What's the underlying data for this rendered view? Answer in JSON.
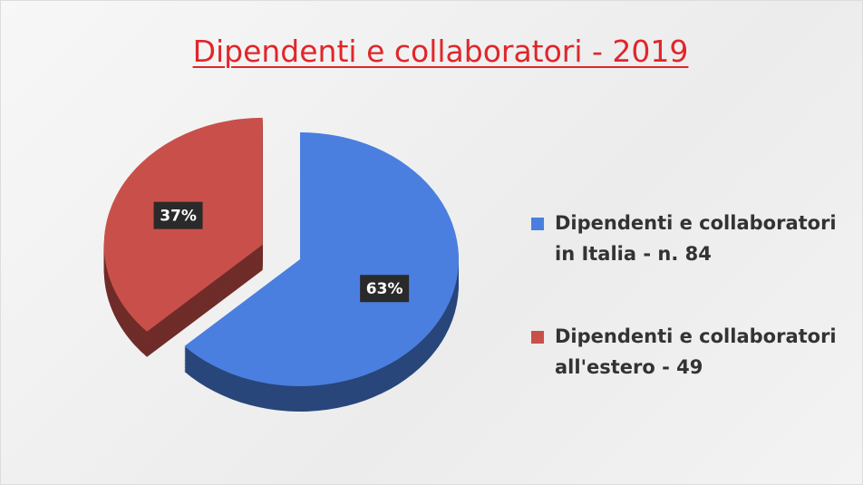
{
  "chart_data": {
    "type": "pie",
    "title": "Dipendenti e collaboratori - 2019",
    "categories": [
      "Dipendenti e collaboratori in Italia - n. 84",
      "Dipendenti e collaboratori all'estero - 49"
    ],
    "values": [
      63,
      37
    ],
    "value_labels": [
      "63%",
      "37%"
    ],
    "colors": [
      "#4a7fe0",
      "#c9504a"
    ],
    "legend": "right"
  }
}
